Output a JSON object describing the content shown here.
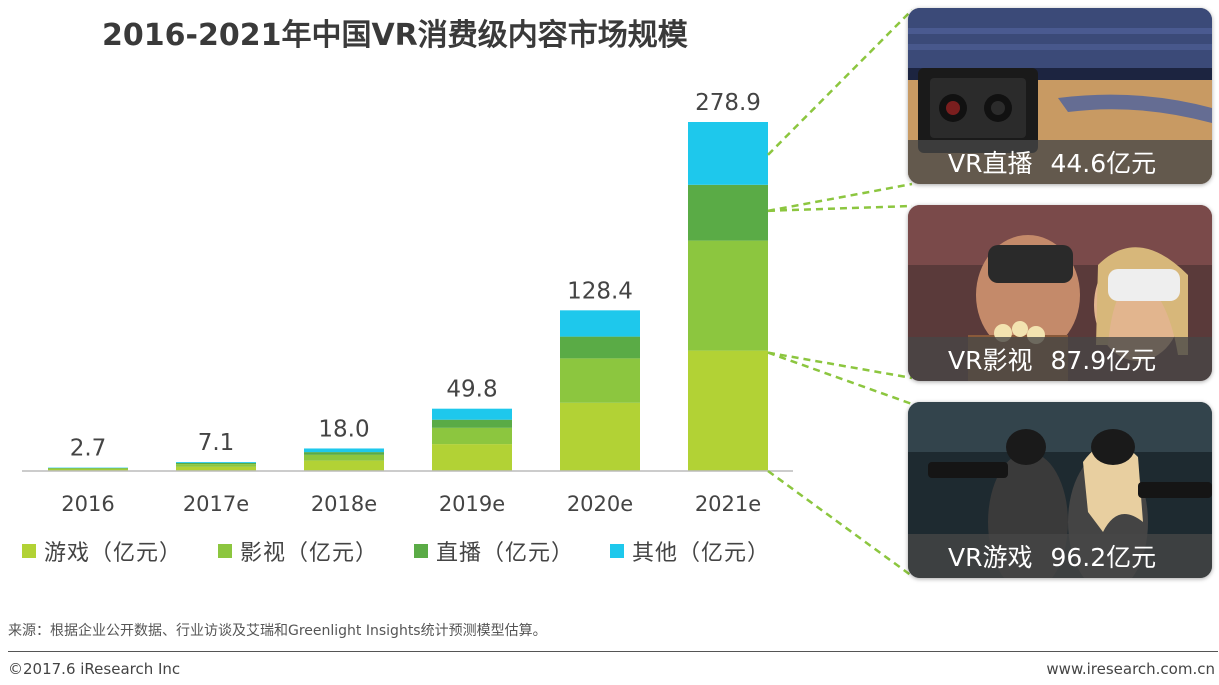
{
  "title": "2016-2021年中国VR消费级内容市场规模",
  "colors": {
    "game": "#b2d235",
    "film": "#8cc63f",
    "live": "#5aab46",
    "other": "#1ec8ec",
    "connector": "#8cc63f",
    "caption_bg": "#4a4a4a"
  },
  "chart_data": {
    "type": "bar",
    "stacked": true,
    "title": "2016-2021年中国VR消费级内容市场规模",
    "categories": [
      "2016",
      "2017e",
      "2018e",
      "2019e",
      "2020e",
      "2021e"
    ],
    "series": [
      {
        "name": "游戏（亿元）",
        "color": "#b2d235",
        "values": [
          1.2,
          3.3,
          8.3,
          21.5,
          54.5,
          96.2
        ]
      },
      {
        "name": "影视（亿元）",
        "color": "#8cc63f",
        "values": [
          0.9,
          2.2,
          4.6,
          13.0,
          35.5,
          87.9
        ]
      },
      {
        "name": "直播（亿元）",
        "color": "#5aab46",
        "values": [
          0.3,
          0.9,
          2.2,
          6.5,
          17.4,
          44.6
        ]
      },
      {
        "name": "其他（亿元）",
        "color": "#1ec8ec",
        "values": [
          0.3,
          0.7,
          2.9,
          8.8,
          21.0,
          50.2
        ]
      }
    ],
    "totals": [
      "2.7",
      "7.1",
      "18.0",
      "49.8",
      "128.4",
      "278.9"
    ],
    "ylim": [
      0,
      300
    ],
    "grid": false,
    "legend_position": "bottom"
  },
  "legend": [
    {
      "label": "游戏（亿元）",
      "color": "#b2d235"
    },
    {
      "label": "影视（亿元）",
      "color": "#8cc63f"
    },
    {
      "label": "直播（亿元）",
      "color": "#5aab46"
    },
    {
      "label": "其他（亿元）",
      "color": "#1ec8ec"
    }
  ],
  "callouts": [
    {
      "name": "VR直播",
      "value": "44.6亿元",
      "scene": "basketball-court-camera"
    },
    {
      "name": "VR影视",
      "value": "87.9亿元",
      "scene": "cinema-vr-headset-audience"
    },
    {
      "name": "VR游戏",
      "value": "96.2亿元",
      "scene": "vr-arcade-shooting-game"
    }
  ],
  "source_note": "来源：根据企业公开数据、行业访谈及艾瑞和Greenlight Insights统计预测模型估算。",
  "footer": {
    "copyright": "©2017.6 iResearch Inc",
    "website": "www.iresearch.com.cn"
  }
}
